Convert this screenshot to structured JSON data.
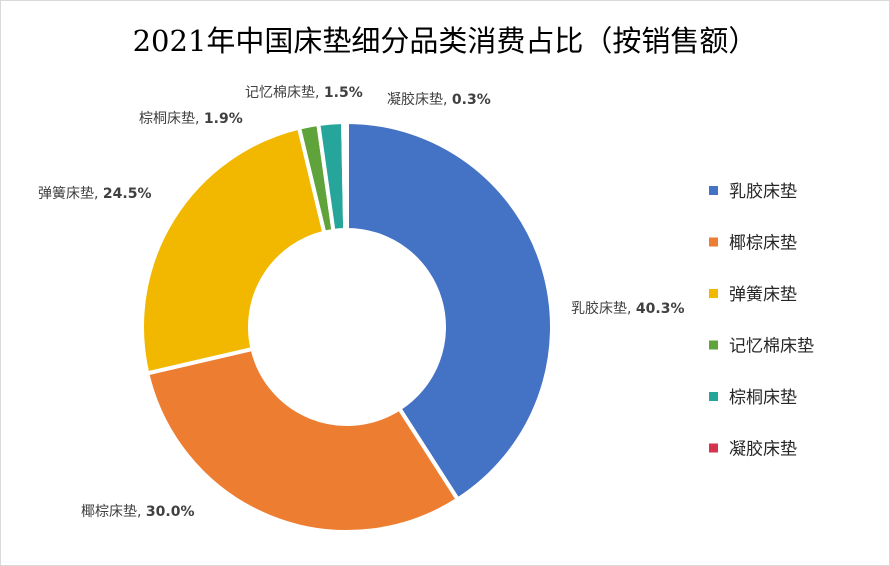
{
  "chart_data": {
    "type": "pie",
    "variant": "donut",
    "title": "2021年中国床垫细分品类消费占比（按销售额）",
    "categories": [
      "乳胶床垫",
      "椰棕床垫",
      "弹簧床垫",
      "记忆棉床垫",
      "棕桐床垫",
      "凝胶床垫"
    ],
    "values": [
      40.3,
      30.0,
      24.5,
      1.5,
      1.9,
      0.3
    ],
    "data_labels": [
      "乳胶床垫, 40.3%",
      "椰棕床垫, 30.0%",
      "弹簧床垫, 24.5%",
      "记忆棉床垫, 1.5%",
      "棕桐床垫, 1.9%",
      "凝胶床垫, 0.3%"
    ],
    "unit": "%",
    "colors": [
      "#4472C4",
      "#ED7D31",
      "#F2B800",
      "#5FA33A",
      "#26A69A",
      "#D6334F"
    ],
    "legend": "right"
  }
}
